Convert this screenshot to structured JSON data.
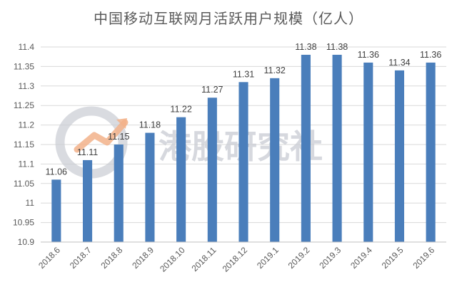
{
  "chart_data": {
    "type": "bar",
    "title": "中国移动互联网月活跃用户规模（亿人）",
    "categories": [
      "2018.6",
      "2018.7",
      "2018.8",
      "2018.9",
      "2018.10",
      "2018.11",
      "2018.12",
      "2019.1",
      "2019.2",
      "2019.3",
      "2019.4",
      "2019.5",
      "2019.6"
    ],
    "values": [
      11.06,
      11.11,
      11.15,
      11.18,
      11.22,
      11.27,
      11.31,
      11.32,
      11.38,
      11.38,
      11.36,
      11.34,
      11.36
    ],
    "value_labels": [
      "11.06",
      "11.11",
      "11.15",
      "11.18",
      "11.22",
      "11.27",
      "11.31",
      "11.32",
      "11.38",
      "11.38",
      "11.36",
      "11.34",
      "11.36"
    ],
    "yticks": [
      "10.9",
      "10.95",
      "11",
      "11.05",
      "11.1",
      "11.15",
      "11.2",
      "11.25",
      "11.3",
      "11.35",
      "11.4"
    ],
    "ylim": [
      10.9,
      11.4
    ],
    "grid": true,
    "legend": "none",
    "bar_color": "#4a7ebb"
  },
  "watermark": {
    "text": "港股研究社",
    "logo": "chart-logo-icon"
  }
}
